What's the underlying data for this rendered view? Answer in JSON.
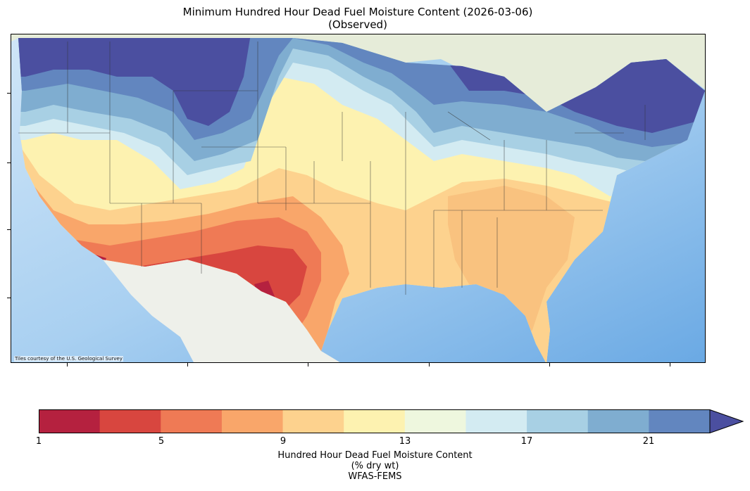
{
  "title": {
    "line1": "Minimum Hundred Hour Dead Fuel Moisture Content (2026-03-06)",
    "line2": "(Observed)"
  },
  "map": {
    "attribution": "Tiles courtesy of the U.S. Geological Survey",
    "ocean_color": "#8fc1ec",
    "land_color": "#eef0ea",
    "canada_color": "#e6ecd9"
  },
  "colorbar": {
    "ticks": [
      "1",
      "5",
      "9",
      "13",
      "17",
      "21"
    ],
    "label_line1": "Hundred Hour Dead Fuel Moisture Content",
    "label_line2": "(% dry wt)",
    "label_line3": "WFAS-FEMS",
    "bins": [
      {
        "range": "1-3",
        "color": "#b5213f"
      },
      {
        "range": "3-5",
        "color": "#d8463f"
      },
      {
        "range": "5-7",
        "color": "#ef7a55"
      },
      {
        "range": "7-9",
        "color": "#f9a66a"
      },
      {
        "range": "9-11",
        "color": "#fdd28e"
      },
      {
        "range": "11-13",
        "color": "#fdf2b0"
      },
      {
        "range": "13-15",
        "color": "#eef7de"
      },
      {
        "range": "15-17",
        "color": "#d3ebf2"
      },
      {
        "range": "17-19",
        "color": "#a8d0e4"
      },
      {
        "range": "19-21",
        "color": "#7fadd0"
      },
      {
        "range": "21-23",
        "color": "#6286bf"
      },
      {
        "range": ">23",
        "color": "#4b4fa0"
      }
    ]
  }
}
